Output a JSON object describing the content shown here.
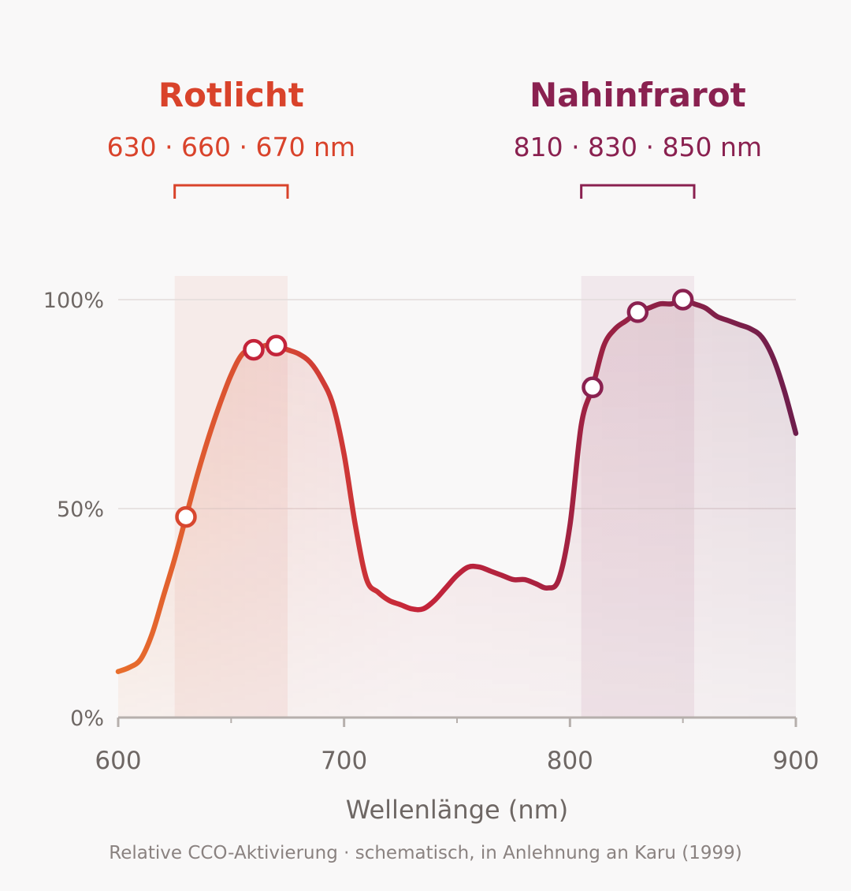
{
  "colors": {
    "background": "#f9f8f8",
    "red_band": "#d9432b",
    "nir_band": "#8a2150",
    "curve_start": "#e86e2c",
    "curve_mid": "#c4243a",
    "curve_end": "#6e1e4c",
    "axis": "#b6afac",
    "grid": "#e3dcdb",
    "text_muted": "#6e6764"
  },
  "chart_data": {
    "type": "line",
    "title": "",
    "xlabel": "Wellenlänge (nm)",
    "ylabel": "",
    "caption": "Relative CCO-Aktivierung · schematisch, in Anlehnung an Karu (1999)",
    "xlim": [
      600,
      900
    ],
    "ylim": [
      0,
      100
    ],
    "x_ticks": [
      600,
      700,
      800,
      900
    ],
    "x_minor_ticks": [
      650,
      750,
      850
    ],
    "y_ticks": [
      "0%",
      "50%",
      "100%"
    ],
    "y_tick_values": [
      0,
      50,
      100
    ],
    "grid": "horizontal",
    "series": [
      {
        "x": [
          600,
          605,
          610,
          615,
          620,
          625,
          630,
          635,
          640,
          645,
          650,
          655,
          660,
          665,
          670,
          675,
          680,
          685,
          690,
          695,
          700,
          705,
          710,
          715,
          720,
          725,
          730,
          735,
          740,
          745,
          750,
          755,
          760,
          765,
          770,
          775,
          780,
          785,
          790,
          795,
          800,
          805,
          810,
          815,
          820,
          825,
          830,
          835,
          840,
          845,
          850,
          855,
          860,
          865,
          870,
          875,
          880,
          885,
          890,
          895,
          900
        ],
        "y": [
          11,
          12,
          14,
          20,
          29,
          38,
          48,
          58,
          67,
          75,
          82,
          87,
          88,
          89,
          89,
          88,
          87,
          85,
          81,
          75,
          63,
          46,
          33,
          30,
          28,
          27,
          26,
          26,
          28,
          31,
          34,
          36,
          36,
          35,
          34,
          33,
          33,
          32,
          31,
          33,
          46,
          70,
          79,
          89,
          93,
          95,
          97,
          98,
          99,
          99,
          100,
          99,
          98,
          96,
          95,
          94,
          93,
          91,
          86,
          78,
          68
        ]
      }
    ],
    "markers": [
      {
        "x": 630,
        "y": 48
      },
      {
        "x": 660,
        "y": 88
      },
      {
        "x": 670,
        "y": 89
      },
      {
        "x": 810,
        "y": 79
      },
      {
        "x": 830,
        "y": 97
      },
      {
        "x": 850,
        "y": 100
      }
    ],
    "bands": [
      {
        "title": "Rotlicht",
        "range_label": "630 · 660 · 670 nm",
        "from": 625,
        "to": 675,
        "color": "#d9432b"
      },
      {
        "title": "Nahinfrarot",
        "range_label": "810 · 830 · 850 nm",
        "from": 805,
        "to": 855,
        "color": "#8a2150"
      }
    ]
  }
}
